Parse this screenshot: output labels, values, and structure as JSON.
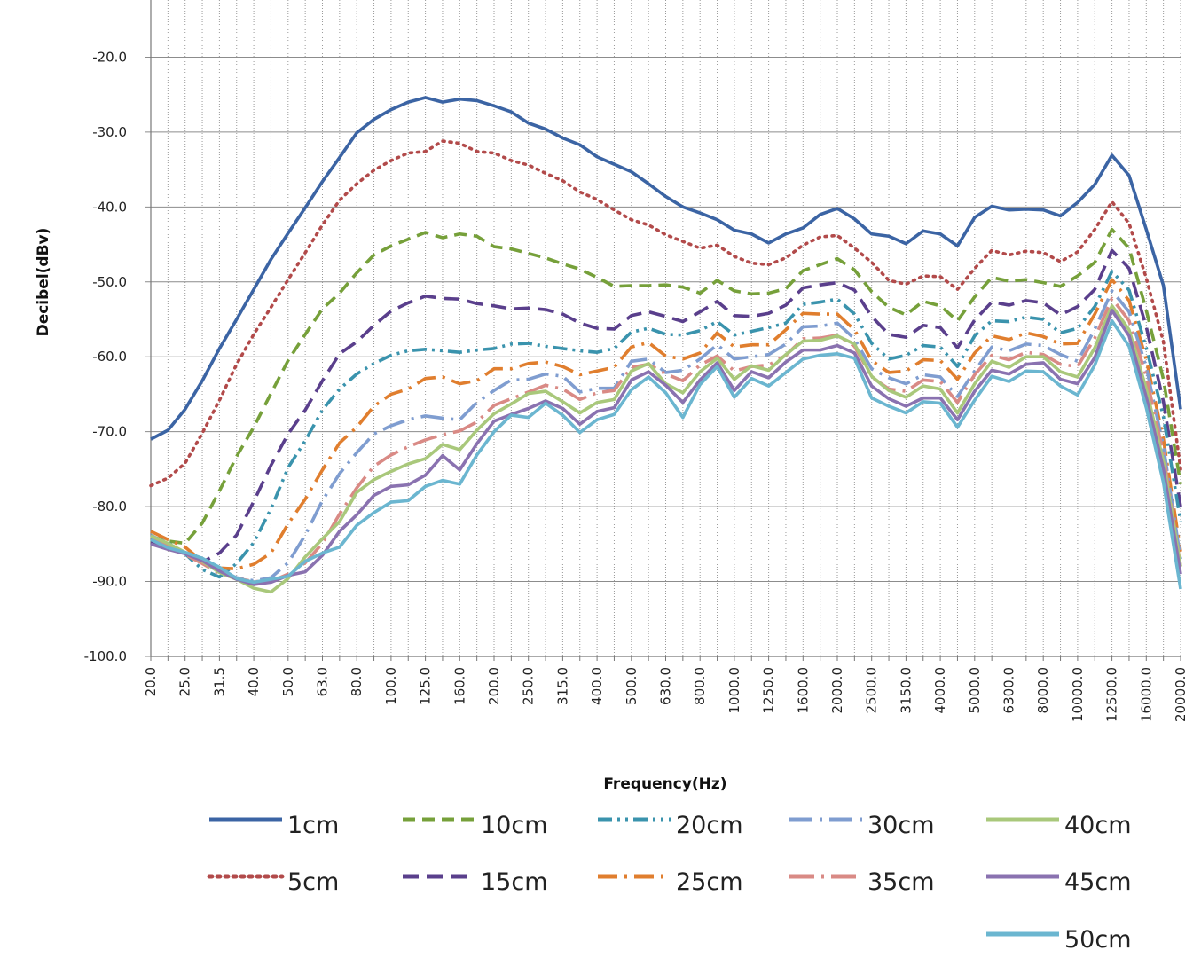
{
  "chart_data": {
    "type": "line",
    "title": "",
    "xlabel": "Frequency(Hz)",
    "ylabel": "Decibel(dBv)",
    "ylim": [
      -100,
      -10
    ],
    "yticks": [
      -100,
      -90,
      -80,
      -70,
      -60,
      -50,
      -40,
      -30,
      -20
    ],
    "ytick_labels": [
      "-100.0",
      "-90.0",
      "-80.0",
      "-70.0",
      "-60.0",
      "-50.0",
      "-40.0",
      "-30.0",
      "-20.0"
    ],
    "x": [
      20,
      22.4,
      25,
      28,
      31.5,
      35.5,
      40,
      45,
      50,
      56,
      63,
      71,
      80,
      90,
      100,
      112,
      125,
      140,
      160,
      180,
      200,
      224,
      250,
      280,
      315,
      355,
      400,
      450,
      500,
      560,
      630,
      710,
      800,
      900,
      1000,
      1120,
      1250,
      1400,
      1600,
      1800,
      2000,
      2240,
      2500,
      2800,
      3150,
      3550,
      4000,
      4500,
      5000,
      5600,
      6300,
      7100,
      8000,
      9000,
      10000,
      11200,
      12500,
      14000,
      16000,
      18000,
      20000
    ],
    "xtick_labels": [
      "20.0",
      "25.0",
      "31.5",
      "40.0",
      "50.0",
      "63.0",
      "80.0",
      "100.0",
      "125.0",
      "160.0",
      "200.0",
      "250.0",
      "315.0",
      "400.0",
      "500.0",
      "630.0",
      "800.0",
      "1000.0",
      "1250.0",
      "1600.0",
      "2000.0",
      "2500.0",
      "3150.0",
      "4000.0",
      "5000.0",
      "6300.0",
      "8000.0",
      "10000.0",
      "12500.0",
      "16000.0",
      "20000.0"
    ],
    "legend_position": "bottom",
    "series": [
      {
        "name": "1cm",
        "color": "#3b64a4",
        "dash": "solid",
        "values": [
          -71,
          -69.8,
          -67,
          -63.2,
          -58.9,
          -55,
          -51,
          -47,
          -43.5,
          -40.1,
          -36.6,
          -33.4,
          -30.1,
          -28.3,
          -27,
          -26,
          -25.4,
          -26,
          -25.6,
          -25.8,
          -26.5,
          -27.3,
          -28.8,
          -29.6,
          -30.8,
          -31.7,
          -33.3,
          -34.3,
          -35.3,
          -36.9,
          -38.6,
          -40,
          -40.8,
          -41.7,
          -43.1,
          -43.6,
          -44.8,
          -43.6,
          -42.8,
          -41,
          -40.2,
          -41.6,
          -43.6,
          -43.9,
          -44.9,
          -43.2,
          -43.6,
          -45.2,
          -41.4,
          -39.9,
          -40.4,
          -40.3,
          -40.4,
          -41.2,
          -39.4,
          -37,
          -33.1,
          -35.8,
          -43,
          -50.5,
          -67
        ]
      },
      {
        "name": "5cm",
        "color": "#b24a4a",
        "dash": "2 6",
        "values": [
          -77.2,
          -76.2,
          -74.2,
          -70.2,
          -65.8,
          -61,
          -57,
          -53.4,
          -49.7,
          -46.1,
          -42.4,
          -39.1,
          -36.9,
          -35.1,
          -33.8,
          -32.8,
          -32.6,
          -31.2,
          -31.5,
          -32.6,
          -32.8,
          -33.8,
          -34.4,
          -35.5,
          -36.5,
          -38,
          -39,
          -40.4,
          -41.7,
          -42.4,
          -43.7,
          -44.6,
          -45.5,
          -45.1,
          -46.6,
          -47.5,
          -47.7,
          -46.8,
          -45.1,
          -44,
          -43.8,
          -45.5,
          -47.4,
          -49.8,
          -50.3,
          -49.2,
          -49.3,
          -51,
          -48.2,
          -45.8,
          -46.4,
          -45.9,
          -46.1,
          -47.3,
          -46,
          -43,
          -39.3,
          -42.2,
          -49.5,
          -58,
          -75
        ]
      },
      {
        "name": "10cm",
        "color": "#76a03a",
        "dash": "14 8",
        "values": [
          -84,
          -84.6,
          -84.9,
          -82.2,
          -77.9,
          -73.3,
          -69.4,
          -64.9,
          -60.5,
          -57,
          -53.6,
          -51.5,
          -48.8,
          -46.4,
          -45.2,
          -44.3,
          -43.4,
          -44.1,
          -43.6,
          -43.9,
          -45.3,
          -45.6,
          -46.2,
          -46.8,
          -47.6,
          -48.3,
          -49.4,
          -50.6,
          -50.5,
          -50.5,
          -50.4,
          -50.7,
          -51.5,
          -49.8,
          -51.2,
          -51.6,
          -51.5,
          -50.9,
          -48.5,
          -47.7,
          -46.9,
          -48.4,
          -51.3,
          -53.4,
          -54.4,
          -52.6,
          -53.2,
          -55.2,
          -52,
          -49.4,
          -49.9,
          -49.7,
          -50.1,
          -50.6,
          -49.2,
          -47.4,
          -43,
          -45.5,
          -53.8,
          -63,
          -77
        ]
      },
      {
        "name": "15cm",
        "color": "#5a3f8c",
        "dash": "18 9",
        "values": [
          -84.8,
          -85.5,
          -86.2,
          -87.4,
          -86.2,
          -83.8,
          -79.3,
          -74.5,
          -70.3,
          -67.1,
          -63.2,
          -59.6,
          -58,
          -55.8,
          -53.9,
          -52.8,
          -51.9,
          -52.2,
          -52.3,
          -52.9,
          -53.2,
          -53.6,
          -53.5,
          -53.7,
          -54.3,
          -55.5,
          -56.2,
          -56.3,
          -54.5,
          -54,
          -54.6,
          -55.3,
          -54,
          -52.6,
          -54.5,
          -54.6,
          -54.2,
          -53.1,
          -50.8,
          -50.4,
          -50.1,
          -51.1,
          -54.6,
          -57,
          -57.4,
          -55.8,
          -56.1,
          -58.8,
          -55.1,
          -52.7,
          -53.1,
          -52.5,
          -52.8,
          -54.4,
          -53.3,
          -51,
          -45.8,
          -48.2,
          -56,
          -66,
          -80
        ]
      },
      {
        "name": "20cm",
        "color": "#3a93ad",
        "dash": "16 6 3 6 3 6",
        "values": [
          -84,
          -84.8,
          -86.3,
          -88.4,
          -89.4,
          -87.6,
          -84.8,
          -80.3,
          -74.8,
          -71.2,
          -67.1,
          -64.3,
          -62.3,
          -60.9,
          -59.8,
          -59.2,
          -59,
          -59.2,
          -59.4,
          -59.1,
          -58.9,
          -58.3,
          -58.2,
          -58.6,
          -58.9,
          -59.2,
          -59.4,
          -58.9,
          -56.7,
          -56.2,
          -57,
          -57.1,
          -56.5,
          -55.3,
          -57.1,
          -56.6,
          -56.1,
          -55.5,
          -53,
          -52.7,
          -52.3,
          -54.3,
          -58.2,
          -60.3,
          -59.8,
          -58.5,
          -58.7,
          -61.3,
          -57.2,
          -55.2,
          -55.3,
          -54.7,
          -55,
          -56.8,
          -56.2,
          -53.3,
          -48.6,
          -51.1,
          -58.8,
          -68,
          -82
        ]
      },
      {
        "name": "25cm",
        "color": "#e07e2e",
        "dash": "22 8 3 8",
        "values": [
          -83.3,
          -84.4,
          -85.4,
          -87.3,
          -88.2,
          -88.3,
          -87.7,
          -86.2,
          -82.3,
          -79,
          -75.1,
          -71.5,
          -69.4,
          -66.6,
          -65,
          -64.3,
          -62.9,
          -62.7,
          -63.6,
          -63.2,
          -61.6,
          -61.6,
          -60.9,
          -60.7,
          -61.3,
          -62.4,
          -61.9,
          -61.4,
          -58.7,
          -58.1,
          -59.9,
          -60.3,
          -59.5,
          -56.8,
          -58.7,
          -58.4,
          -58.4,
          -56.4,
          -54.2,
          -54.3,
          -54.3,
          -56.4,
          -60.5,
          -62.1,
          -61.9,
          -60.4,
          -60.5,
          -63,
          -59.5,
          -57.2,
          -57.7,
          -56.8,
          -57.3,
          -58.3,
          -58.2,
          -54.3,
          -49.7,
          -52.5,
          -60.4,
          -71,
          -86
        ]
      },
      {
        "name": "30cm",
        "color": "#7f9dd0",
        "dash": "26 8 3 8",
        "values": [
          -83.8,
          -85,
          -86.3,
          -87.4,
          -88.5,
          -89.5,
          -89.9,
          -89.5,
          -87.5,
          -83.8,
          -79.2,
          -75.6,
          -72.8,
          -70.3,
          -69.2,
          -68.4,
          -67.9,
          -68.2,
          -68.4,
          -66.1,
          -64.5,
          -63.1,
          -63,
          -62.3,
          -62.6,
          -64.7,
          -64.2,
          -64.2,
          -60.6,
          -60.3,
          -62.1,
          -61.8,
          -60.3,
          -58.4,
          -60.3,
          -60,
          -59.7,
          -58.3,
          -56,
          -55.9,
          -55.5,
          -57.6,
          -61.6,
          -62.8,
          -63.6,
          -62.4,
          -62.7,
          -65.3,
          -61.9,
          -58.7,
          -59.2,
          -58.3,
          -58.5,
          -59.7,
          -60.6,
          -56.3,
          -51.2,
          -54,
          -61.4,
          -72,
          -87
        ]
      },
      {
        "name": "35cm",
        "color": "#d98a85",
        "dash": "28 8 3 8",
        "values": [
          -84,
          -85.1,
          -86.4,
          -87.6,
          -88.9,
          -89.6,
          -90,
          -90,
          -89,
          -87.5,
          -84.9,
          -81,
          -77.5,
          -74.6,
          -73.1,
          -72,
          -71.1,
          -70.4,
          -69.9,
          -68.7,
          -66.5,
          -65.6,
          -64.7,
          -63.8,
          -64.3,
          -65.7,
          -64.8,
          -64.5,
          -61.4,
          -61,
          -62.3,
          -63.2,
          -61.1,
          -59.9,
          -61.9,
          -61.3,
          -61.1,
          -59.8,
          -57.6,
          -57.5,
          -57.1,
          -58.6,
          -62.7,
          -64.3,
          -64.6,
          -63.1,
          -63.3,
          -66.1,
          -62.4,
          -59.8,
          -60.4,
          -59.4,
          -59.7,
          -61,
          -61.3,
          -57.5,
          -52.2,
          -55.2,
          -62.6,
          -73,
          -88
        ]
      },
      {
        "name": "40cm",
        "color": "#a9c87b",
        "dash": "solid",
        "values": [
          -83.9,
          -84.9,
          -86.1,
          -87.3,
          -88.8,
          -89.7,
          -90.9,
          -91.4,
          -89.6,
          -86.7,
          -84.3,
          -82,
          -78.1,
          -76.4,
          -75.3,
          -74.3,
          -73.6,
          -71.7,
          -72.4,
          -69.8,
          -67.6,
          -66.3,
          -64.9,
          -64.6,
          -66,
          -67.5,
          -66.1,
          -65.7,
          -61.9,
          -60.9,
          -63.6,
          -64.8,
          -62,
          -60.2,
          -63,
          -61.2,
          -61.8,
          -59.7,
          -57.9,
          -57.8,
          -57.2,
          -58.3,
          -62.6,
          -64.5,
          -65.4,
          -63.9,
          -64.3,
          -67.5,
          -63.6,
          -60.6,
          -61.4,
          -60,
          -60,
          -62,
          -62.7,
          -58.8,
          -53.2,
          -56.4,
          -64.3,
          -74,
          -88
        ]
      },
      {
        "name": "45cm",
        "color": "#8a72b0",
        "dash": "solid",
        "values": [
          -85,
          -85.7,
          -86.3,
          -87.2,
          -88.6,
          -89.7,
          -90.4,
          -90.1,
          -89.2,
          -88.7,
          -86.5,
          -83.3,
          -81.1,
          -78.5,
          -77.3,
          -77.1,
          -75.8,
          -73.2,
          -75.1,
          -71.6,
          -68.6,
          -67.7,
          -66.9,
          -65.9,
          -66.9,
          -69,
          -67.3,
          -66.8,
          -63.1,
          -62,
          -63.8,
          -66.1,
          -63.1,
          -60.8,
          -64.5,
          -62,
          -62.8,
          -60.7,
          -59.1,
          -59.1,
          -58.5,
          -59.5,
          -63.9,
          -65.6,
          -66.6,
          -65.5,
          -65.5,
          -68.4,
          -64.6,
          -61.8,
          -62.3,
          -61,
          -60.8,
          -63,
          -63.6,
          -60.1,
          -53.8,
          -57.2,
          -65.4,
          -75,
          -89
        ]
      },
      {
        "name": "50cm",
        "color": "#6bb6d0",
        "dash": "solid",
        "values": [
          -84.4,
          -85.5,
          -86.1,
          -86.9,
          -88.1,
          -89.6,
          -90.1,
          -89.7,
          -89.3,
          -87.3,
          -86.2,
          -85.4,
          -82.5,
          -80.8,
          -79.4,
          -79.2,
          -77.3,
          -76.5,
          -77,
          -73.1,
          -70,
          -67.8,
          -68.1,
          -66.2,
          -67.8,
          -70.1,
          -68.4,
          -67.7,
          -64.4,
          -62.7,
          -64.8,
          -68.1,
          -63.7,
          -61.3,
          -65.4,
          -62.9,
          -63.9,
          -62.1,
          -60.3,
          -59.8,
          -59.6,
          -60.2,
          -65.5,
          -66.6,
          -67.5,
          -66,
          -66.2,
          -69.4,
          -65.8,
          -62.6,
          -63.3,
          -61.9,
          -62,
          -63.9,
          -65.1,
          -61.1,
          -55.2,
          -58.6,
          -66.8,
          -76.8,
          -91
        ]
      }
    ]
  }
}
